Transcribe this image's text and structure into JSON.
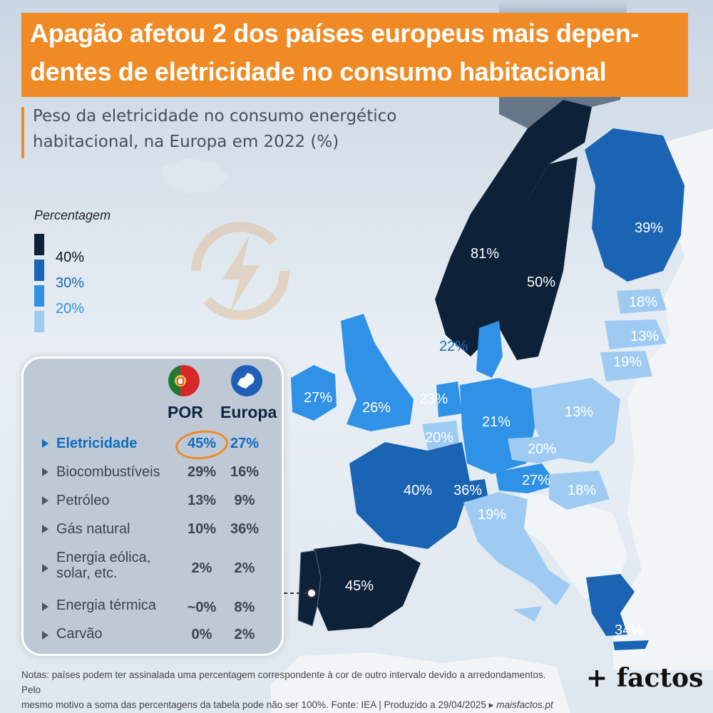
{
  "title": {
    "line1": "Apagão afetou 2 dos países europeus mais depen-",
    "line2": "dentes de eletricidade no consumo habitacional"
  },
  "subtitle": {
    "line1": "Peso da eletricidade no consumo energético",
    "line2": "habitacional, na Europa em 2022 (%)"
  },
  "legend": {
    "title": "Percentagem",
    "items": [
      {
        "label": "40%",
        "color": "#0d2138"
      },
      {
        "label": "30%",
        "color": "#1b64b3"
      },
      {
        "label": "20%",
        "color": "#2f92e6"
      },
      {
        "label": "",
        "color": "#9fcbf3"
      }
    ],
    "labels": [
      "40%",
      "30%",
      "20%"
    ]
  },
  "table": {
    "columns": [
      "POR",
      "Europa"
    ],
    "rows": [
      {
        "label": "Eletricidade",
        "por": "45%",
        "europa": "27%",
        "highlight": true
      },
      {
        "label": "Biocombustíveis",
        "por": "29%",
        "europa": "16%"
      },
      {
        "label": "Petróleo",
        "por": "13%",
        "europa": "9%"
      },
      {
        "label": "Gás natural",
        "por": "10%",
        "europa": "36%"
      },
      {
        "label_line1": "Energia eólica,",
        "label_line2": "solar, etc.",
        "por": "2%",
        "europa": "2%"
      },
      {
        "label": "Energia térmica",
        "por": "~0%",
        "europa": "8%"
      },
      {
        "label": "Carvão",
        "por": "0%",
        "europa": "2%"
      }
    ],
    "icons": [
      "portugal-flag-icon",
      "europe-globe-icon"
    ]
  },
  "map": {
    "countries": [
      {
        "name": "Norway",
        "value": "81%",
        "color": "#0d2138"
      },
      {
        "name": "Sweden",
        "value": "50%",
        "color": "#0d2138"
      },
      {
        "name": "Finland",
        "value": "39%",
        "color": "#1b64b3"
      },
      {
        "name": "Estonia",
        "value": "18%",
        "color": "#9fcbf3"
      },
      {
        "name": "Latvia",
        "value": "13%",
        "color": "#9fcbf3"
      },
      {
        "name": "Lithuania",
        "value": "19%",
        "color": "#9fcbf3"
      },
      {
        "name": "Denmark",
        "value": "22%",
        "color": "#2f92e6"
      },
      {
        "name": "Ireland",
        "value": "27%",
        "color": "#2f92e6"
      },
      {
        "name": "United Kingdom",
        "value": "26%",
        "color": "#2f92e6"
      },
      {
        "name": "Netherlands",
        "value": "23%",
        "color": "#2f92e6"
      },
      {
        "name": "Belgium",
        "value": "20%",
        "color": "#9fcbf3"
      },
      {
        "name": "Germany",
        "value": "21%",
        "color": "#2f92e6"
      },
      {
        "name": "Poland",
        "value": "13%",
        "color": "#9fcbf3"
      },
      {
        "name": "Czechia",
        "value": "20%",
        "color": "#9fcbf3"
      },
      {
        "name": "Austria",
        "value": "27%",
        "color": "#2f92e6"
      },
      {
        "name": "Hungary",
        "value": "18%",
        "color": "#9fcbf3"
      },
      {
        "name": "France",
        "value": "40%",
        "color": "#1b64b3"
      },
      {
        "name": "Switzerland",
        "value": "36%",
        "color": "#1b64b3"
      },
      {
        "name": "Italy",
        "value": "19%",
        "color": "#9fcbf3"
      },
      {
        "name": "Spain",
        "value": "45%",
        "color": "#0d2138"
      },
      {
        "name": "Greece",
        "value": "34%",
        "color": "#1b64b3"
      }
    ]
  },
  "notes": {
    "line1": "Notas: países podem ter assinalada uma percentagem correspondente à cor de outro intervalo devido a arredondamentos. Pelo",
    "line2": "mesmo motivo a soma das percentagens da tabela pode não ser 100%. Fonte: IEA | Produzido a 29/04/2025 ▸ ",
    "site": "maisfactos.pt"
  },
  "brand": "+ factos",
  "colors": {
    "accent": "#ef8a24",
    "highlight": "#0f6cc0"
  }
}
